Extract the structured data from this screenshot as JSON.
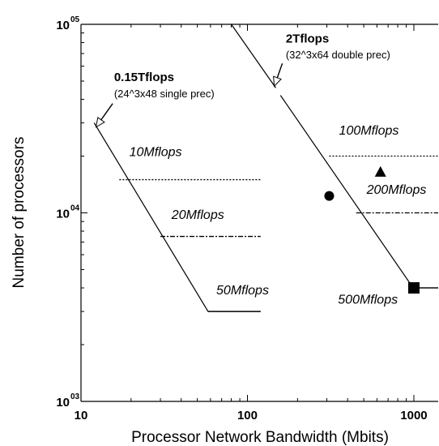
{
  "chart_data": {
    "type": "line",
    "title": "",
    "xlabel": "Processor Network Bandwidth (Mbits)",
    "ylabel": "Number of processors",
    "x_scale": "log",
    "y_scale": "log",
    "xlim": [
      10,
      1400
    ],
    "ylim": [
      1000,
      100000
    ],
    "x_ticks": [
      {
        "value": 10,
        "label": "10"
      },
      {
        "value": 100,
        "label": "100"
      },
      {
        "value": 1000,
        "label": "1000"
      }
    ],
    "y_ticks": [
      {
        "value": 1000,
        "base": "10",
        "exp": "03"
      },
      {
        "value": 10000,
        "base": "10",
        "exp": "04"
      },
      {
        "value": 100000,
        "base": "10",
        "exp": "05"
      }
    ],
    "grid": false,
    "machines": [
      {
        "name": "0.15Tflops",
        "description": "(24^3x48 single prec)",
        "curve": {
          "x": [
            12,
            58,
            120
          ],
          "y": [
            30000,
            3000,
            3000
          ]
        },
        "arrow": {
          "from": [
            15.5,
            38000
          ],
          "to": [
            12.3,
            28500
          ]
        },
        "label_pos": {
          "x": 15.8,
          "y": 50000
        },
        "desc_pos": {
          "x": 15.8,
          "y": 41000
        }
      },
      {
        "name": "2Tflops",
        "description": "(32^3x64 double prec)",
        "curve": {
          "x": [
            80,
            148,
            158,
            990,
            1400
          ],
          "y": [
            100000,
            46000,
            42000,
            4000,
            4000
          ]
        },
        "arrow": {
          "from": [
            162,
            62000
          ],
          "to": [
            145,
            47000
          ]
        },
        "label_pos": {
          "x": 170,
          "y": 80000
        },
        "desc_pos": {
          "x": 170,
          "y": 66000
        }
      }
    ],
    "sustained_rates": [
      {
        "label": "10Mflops",
        "x_range": [
          17,
          120
        ],
        "y": 15000,
        "style": "dotted",
        "label_pos": {
          "x": 19.5,
          "y": 20000
        }
      },
      {
        "label": "20Mflops",
        "x_range": [
          30,
          120
        ],
        "y": 7500,
        "style": "dashdot",
        "label_pos": {
          "x": 35,
          "y": 9300
        }
      },
      {
        "label": "50Mflops",
        "x_range": [
          58,
          120
        ],
        "y": 3000,
        "style": "solid",
        "label_pos": {
          "x": 65,
          "y": 3700
        }
      },
      {
        "label": "100Mflops",
        "x_range": [
          310,
          1400
        ],
        "y": 20000,
        "style": "dotted",
        "label_pos": {
          "x": 355,
          "y": 26000
        }
      },
      {
        "label": "200Mflops",
        "x_range": [
          450,
          1400
        ],
        "y": 10000,
        "style": "dashdot",
        "label_pos": {
          "x": 520,
          "y": 12600
        }
      },
      {
        "label": "500Mflops",
        "x_range": [
          990,
          1400
        ],
        "y": 4000,
        "style": "solid",
        "label_pos": {
          "x": 350,
          "y": 3300
        }
      }
    ],
    "markers": [
      {
        "shape": "circle",
        "x": 310,
        "y": 12300
      },
      {
        "shape": "triangle",
        "x": 630,
        "y": 16500
      },
      {
        "shape": "square",
        "x": 1000,
        "y": 4000
      }
    ]
  }
}
